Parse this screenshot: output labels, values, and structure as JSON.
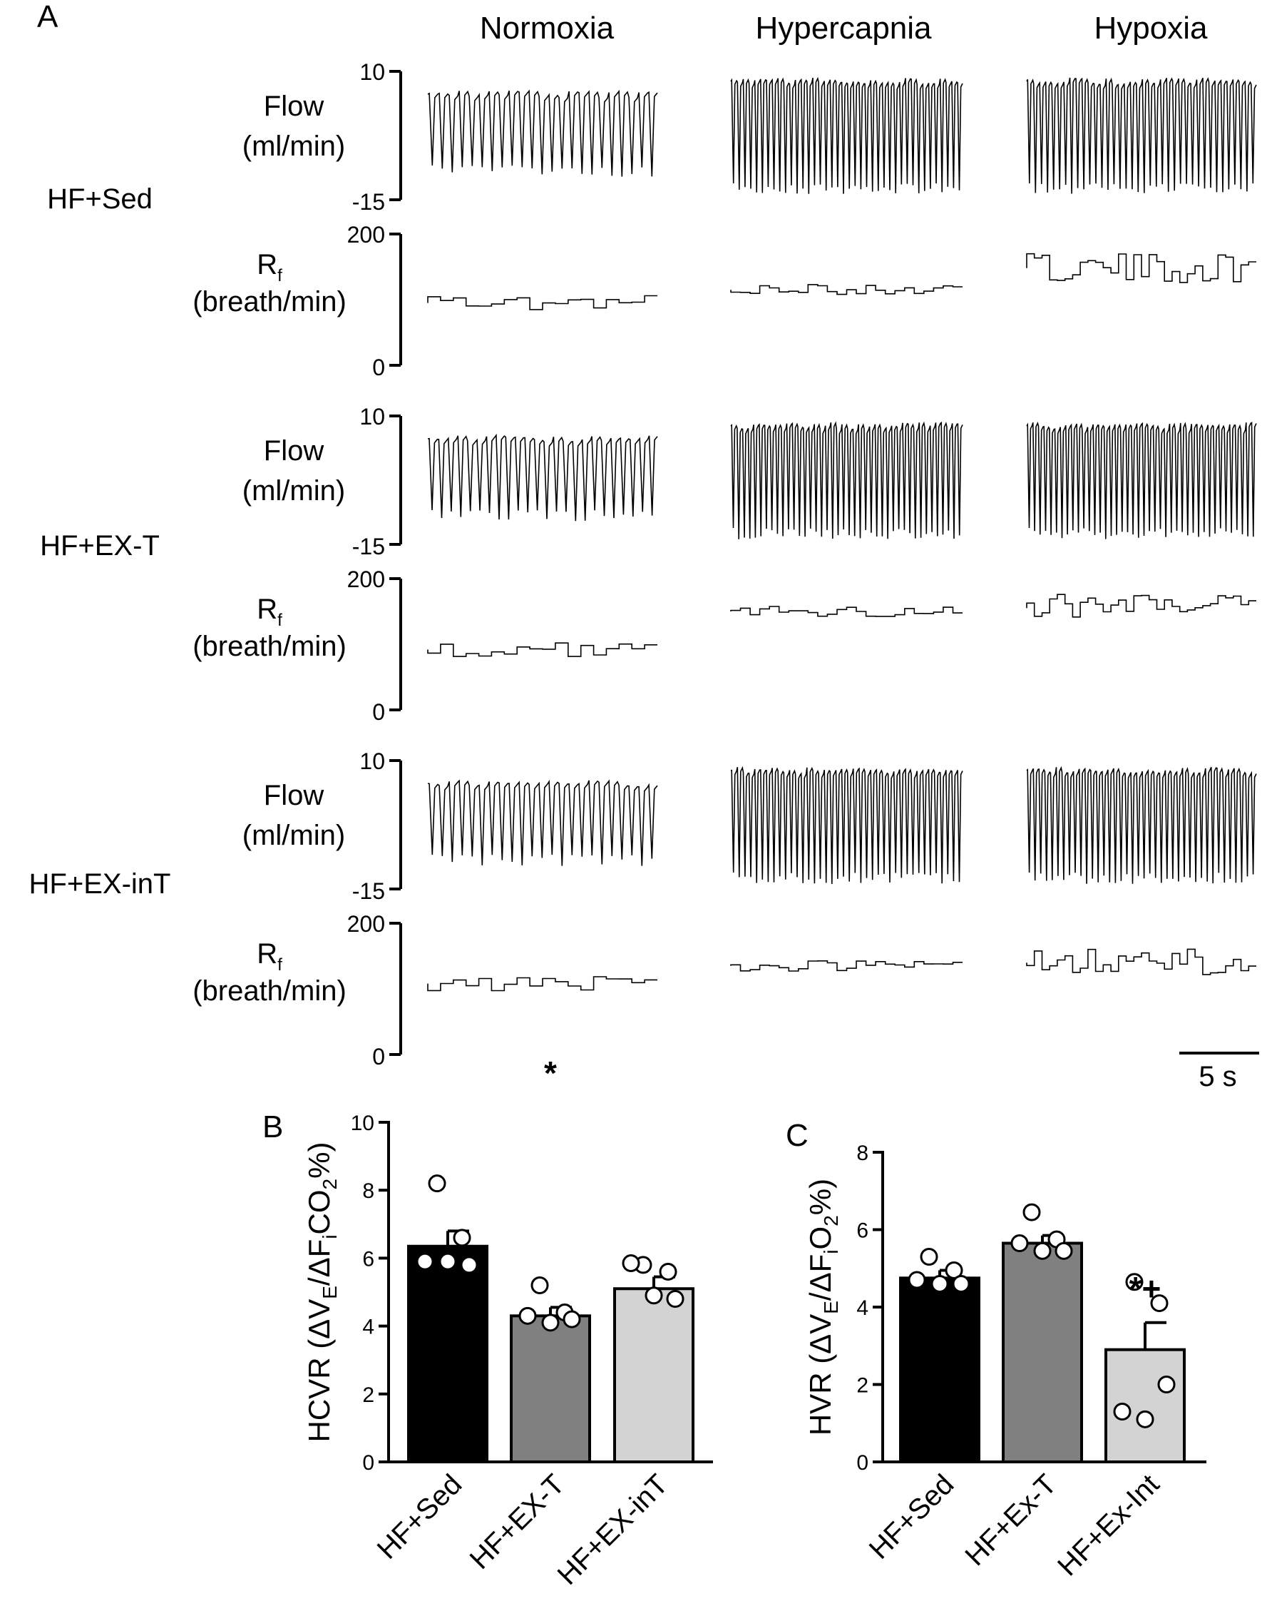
{
  "panel_a": {
    "letter": "A",
    "columns": [
      "Normoxia",
      "Hypercapnia",
      "Hypoxia"
    ],
    "rows": [
      "HF+Sed",
      "HF+EX-T",
      "HF+EX-inT"
    ],
    "flow_label": [
      "Flow",
      "(ml/min)"
    ],
    "rf_label": [
      "R",
      "f",
      "(breath/min)"
    ],
    "flow_ticks": [
      "10",
      "-15"
    ],
    "rf_ticks": [
      "200",
      "0"
    ],
    "scale_bar": "5 s",
    "traces": {
      "flow_breaths": [
        [
          23,
          40,
          38
        ],
        [
          24,
          42,
          42
        ],
        [
          23,
          40,
          40
        ]
      ],
      "rf_level": [
        [
          95,
          115,
          148
        ],
        [
          92,
          150,
          155
        ],
        [
          108,
          135,
          140
        ]
      ]
    }
  },
  "chart_data": [
    {
      "type": "bar",
      "panel": "B",
      "categories": [
        "HF+Sed",
        "HF+EX-T",
        "HF+EX-inT"
      ],
      "values": [
        6.35,
        4.3,
        5.1
      ],
      "errors": [
        0.45,
        0.25,
        0.35
      ],
      "points": [
        [
          8.2,
          6.6,
          5.9,
          5.9,
          5.8
        ],
        [
          5.2,
          4.4,
          4.3,
          4.1,
          4.2
        ],
        [
          5.8,
          5.6,
          5.85,
          4.9,
          4.8
        ]
      ],
      "bar_colors": [
        "#000000",
        "#808080",
        "#d3d3d3"
      ],
      "significance": [
        "",
        "*",
        ""
      ],
      "ylabel": "HCVR (ΔVE/ΔFiCO2%)",
      "ylabel_parts": [
        "HCVR (ΔV",
        "E",
        "/ΔF",
        "i",
        "CO",
        "2",
        "%)"
      ],
      "ylim": [
        0,
        10
      ],
      "yticks": [
        0,
        2,
        4,
        6,
        8,
        10
      ]
    },
    {
      "type": "bar",
      "panel": "C",
      "categories": [
        "HF+Sed",
        "HF+Ex-T",
        "HF+Ex-Int"
      ],
      "values": [
        4.75,
        5.65,
        2.9
      ],
      "errors": [
        0.2,
        0.2,
        0.7
      ],
      "points": [
        [
          5.3,
          4.95,
          4.7,
          4.6,
          4.6
        ],
        [
          6.45,
          5.75,
          5.65,
          5.45,
          5.45
        ],
        [
          4.65,
          4.1,
          1.3,
          1.1,
          2.0
        ]
      ],
      "bar_colors": [
        "#000000",
        "#808080",
        "#d3d3d3"
      ],
      "significance": [
        "",
        "",
        "*+"
      ],
      "ylabel": "HVR (ΔVE/ΔFiO2%)",
      "ylabel_parts": [
        "HVR (ΔV",
        "E",
        "/ΔF",
        "i",
        "O",
        "2",
        "%)"
      ],
      "ylim": [
        0,
        8
      ],
      "yticks": [
        0,
        2,
        4,
        6,
        8
      ]
    }
  ]
}
